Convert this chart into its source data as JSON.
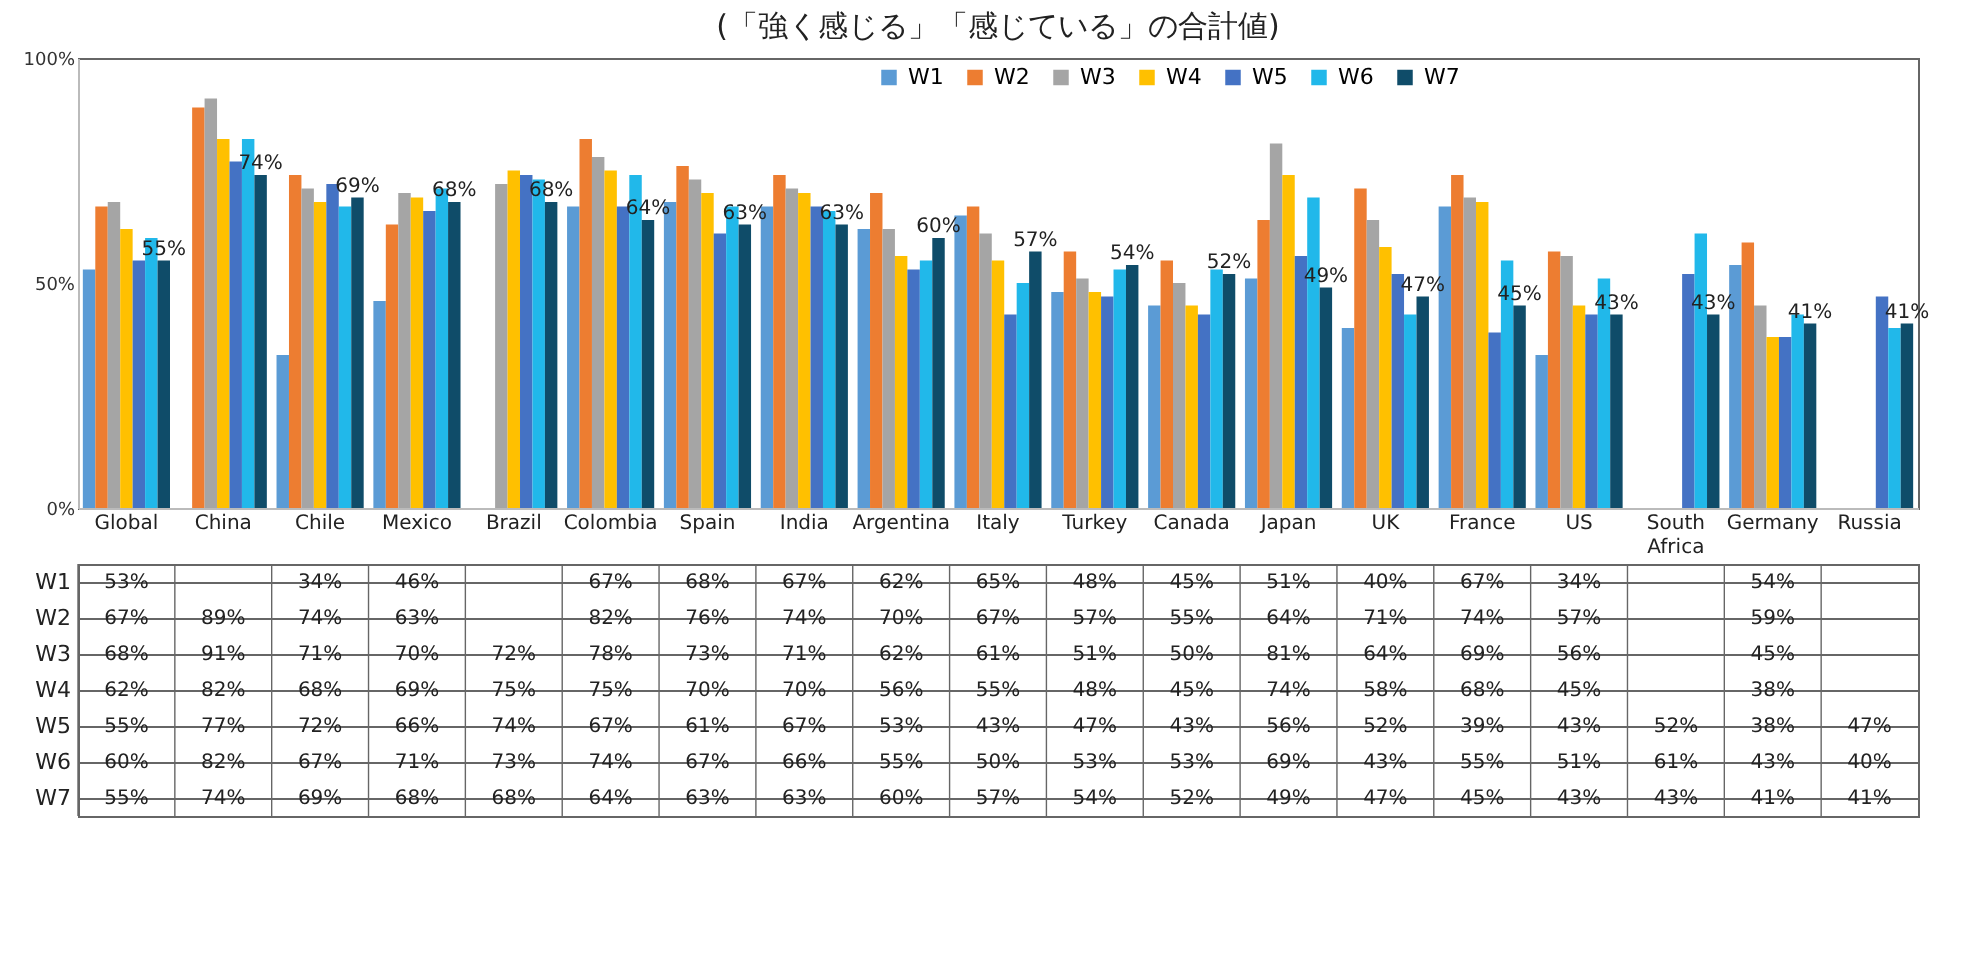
{
  "chart_data": {
    "type": "bar",
    "title": "(「強く感じる」「感じている」の合計値)",
    "categories": [
      "Global",
      "China",
      "Chile",
      "Mexico",
      "Brazil",
      "Colombia",
      "Spain",
      "India",
      "Argentina",
      "Italy",
      "Turkey",
      "Canada",
      "Japan",
      "UK",
      "France",
      "US",
      "South Africa",
      "Germany",
      "Russia"
    ],
    "series": [
      {
        "name": "W1",
        "color": "#5b9bd5",
        "values": [
          53,
          null,
          34,
          46,
          null,
          67,
          68,
          67,
          62,
          65,
          48,
          45,
          51,
          40,
          67,
          34,
          null,
          54,
          null
        ],
        "value_labels": [
          "53%",
          null,
          "34%",
          "46%",
          null,
          "67%",
          "68%",
          "67%",
          "62%",
          "65%",
          "48%",
          "45%",
          "51%",
          "40%",
          "67%",
          "34%",
          null,
          "54%",
          null
        ]
      },
      {
        "name": "W2",
        "color": "#ed7d31",
        "values": [
          67,
          89,
          74,
          63,
          null,
          82,
          76,
          74,
          70,
          67,
          57,
          55,
          64,
          71,
          74,
          57,
          null,
          59,
          null
        ],
        "value_labels": [
          "67%",
          "89%",
          "74%",
          "63%",
          null,
          "82%",
          "76%",
          "74%",
          "70%",
          "67%",
          "57%",
          "55%",
          "64%",
          "71%",
          "74%",
          "57%",
          null,
          "59%",
          null
        ]
      },
      {
        "name": "W3",
        "color": "#a5a5a5",
        "values": [
          68,
          91,
          71,
          70,
          72,
          78,
          73,
          71,
          62,
          61,
          51,
          50,
          81,
          64,
          69,
          56,
          null,
          45,
          null
        ],
        "value_labels": [
          "68%",
          "91%",
          "71%",
          "70%",
          "72%",
          "78%",
          "73%",
          "71%",
          "62%",
          "61%",
          "51%",
          "50%",
          "81%",
          "64%",
          "69%",
          "56%",
          null,
          "45%",
          null
        ]
      },
      {
        "name": "W4",
        "color": "#ffc000",
        "values": [
          62,
          82,
          68,
          69,
          75,
          75,
          70,
          70,
          56,
          55,
          48,
          45,
          74,
          58,
          68,
          45,
          null,
          38,
          null
        ],
        "value_labels": [
          "62%",
          "82%",
          "68%",
          "69%",
          "75%",
          "75%",
          "70%",
          "70%",
          "56%",
          "55%",
          "48%",
          "45%",
          "74%",
          "58%",
          "68%",
          "45%",
          null,
          "38%",
          null
        ]
      },
      {
        "name": "W5",
        "color": "#4472c4",
        "values": [
          55,
          77,
          72,
          66,
          74,
          67,
          61,
          67,
          53,
          43,
          47,
          43,
          56,
          52,
          39,
          43,
          52,
          38,
          47
        ],
        "value_labels": [
          "55%",
          "77%",
          "72%",
          "66%",
          "74%",
          "67%",
          "61%",
          "67%",
          "53%",
          "43%",
          "47%",
          "43%",
          "56%",
          "52%",
          "39%",
          "43%",
          "52%",
          "38%",
          "47%"
        ]
      },
      {
        "name": "W6",
        "color": "#21b8ea",
        "values": [
          60,
          82,
          67,
          71,
          73,
          74,
          67,
          66,
          55,
          50,
          53,
          53,
          69,
          43,
          55,
          51,
          61,
          43,
          40
        ],
        "value_labels": [
          "60%",
          "82%",
          "67%",
          "71%",
          "73%",
          "74%",
          "67%",
          "66%",
          "55%",
          "50%",
          "53%",
          "53%",
          "69%",
          "43%",
          "55%",
          "51%",
          "61%",
          "43%",
          "40%"
        ]
      },
      {
        "name": "W7",
        "color": "#0f4c69",
        "values": [
          55,
          74,
          69,
          68,
          68,
          64,
          63,
          63,
          60,
          57,
          54,
          52,
          49,
          47,
          45,
          43,
          43,
          41,
          41
        ],
        "value_labels": [
          "55%",
          "74%",
          "69%",
          "68%",
          "68%",
          "64%",
          "63%",
          "63%",
          "60%",
          "57%",
          "54%",
          "52%",
          "49%",
          "47%",
          "45%",
          "43%",
          "43%",
          "41%",
          "41%"
        ],
        "data_labels": true
      }
    ],
    "ylim": [
      0,
      100
    ],
    "yticks": [
      {
        "value": 0,
        "label": "0%"
      },
      {
        "value": 50,
        "label": "50%"
      },
      {
        "value": 100,
        "label": "100%"
      }
    ],
    "grid": false,
    "legend": "top",
    "data_labels": true
  }
}
